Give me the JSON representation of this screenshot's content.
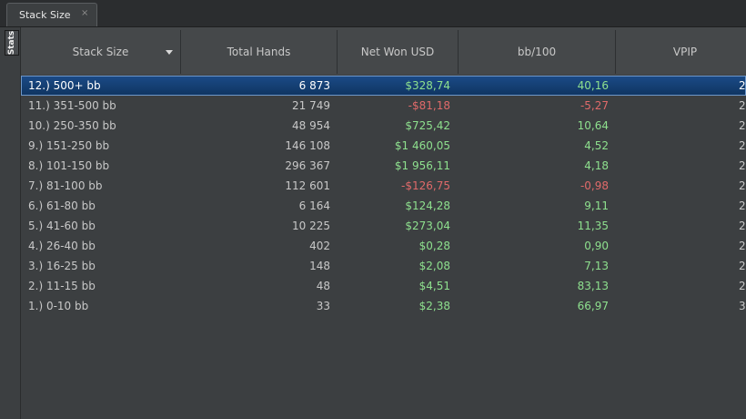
{
  "tabs": [
    {
      "label": "Stack Size",
      "close_glyph": "×"
    }
  ],
  "side_tab": {
    "label": "Stats"
  },
  "table": {
    "headers": [
      "Stack Size",
      "Total Hands",
      "Net Won USD",
      "bb/100",
      "VPIP"
    ],
    "sort_column": "Stack Size",
    "selected_row": 0,
    "rows": [
      {
        "stack": "12.) 500+ bb",
        "hands": "6 873",
        "net": "$328,74",
        "net_sign": "pos",
        "bb": "40,16",
        "bb_sign": "pos",
        "vpip": "2"
      },
      {
        "stack": "11.) 351-500 bb",
        "hands": "21 749",
        "net": "-$81,18",
        "net_sign": "neg",
        "bb": "-5,27",
        "bb_sign": "neg",
        "vpip": "2"
      },
      {
        "stack": "10.) 250-350 bb",
        "hands": "48 954",
        "net": "$725,42",
        "net_sign": "pos",
        "bb": "10,64",
        "bb_sign": "pos",
        "vpip": "2"
      },
      {
        "stack": "9.) 151-250 bb",
        "hands": "146 108",
        "net": "$1 460,05",
        "net_sign": "pos",
        "bb": "4,52",
        "bb_sign": "pos",
        "vpip": "2"
      },
      {
        "stack": "8.) 101-150 bb",
        "hands": "296 367",
        "net": "$1 956,11",
        "net_sign": "pos",
        "bb": "4,18",
        "bb_sign": "pos",
        "vpip": "2"
      },
      {
        "stack": "7.) 81-100 bb",
        "hands": "112 601",
        "net": "-$126,75",
        "net_sign": "neg",
        "bb": "-0,98",
        "bb_sign": "neg",
        "vpip": "2"
      },
      {
        "stack": "6.) 61-80 bb",
        "hands": "6 164",
        "net": "$124,28",
        "net_sign": "pos",
        "bb": "9,11",
        "bb_sign": "pos",
        "vpip": "2"
      },
      {
        "stack": "5.) 41-60 bb",
        "hands": "10 225",
        "net": "$273,04",
        "net_sign": "pos",
        "bb": "11,35",
        "bb_sign": "pos",
        "vpip": "2"
      },
      {
        "stack": "4.) 26-40 bb",
        "hands": "402",
        "net": "$0,28",
        "net_sign": "pos",
        "bb": "0,90",
        "bb_sign": "pos",
        "vpip": "2"
      },
      {
        "stack": "3.) 16-25 bb",
        "hands": "148",
        "net": "$2,08",
        "net_sign": "pos",
        "bb": "7,13",
        "bb_sign": "pos",
        "vpip": "2"
      },
      {
        "stack": "2.) 11-15 bb",
        "hands": "48",
        "net": "$4,51",
        "net_sign": "pos",
        "bb": "83,13",
        "bb_sign": "pos",
        "vpip": "2"
      },
      {
        "stack": "1.) 0-10 bb",
        "hands": "33",
        "net": "$2,38",
        "net_sign": "pos",
        "bb": "66,97",
        "bb_sign": "pos",
        "vpip": "3"
      }
    ]
  }
}
